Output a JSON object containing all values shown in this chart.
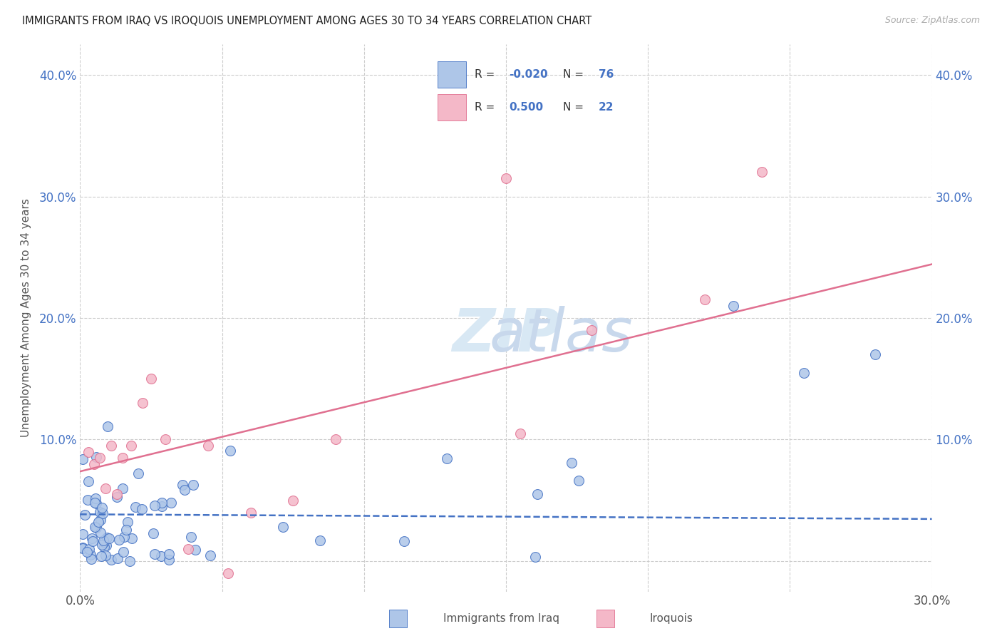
{
  "title": "IMMIGRANTS FROM IRAQ VS IROQUOIS UNEMPLOYMENT AMONG AGES 30 TO 34 YEARS CORRELATION CHART",
  "source": "Source: ZipAtlas.com",
  "ylabel": "Unemployment Among Ages 30 to 34 years",
  "xlim": [
    0.0,
    0.3
  ],
  "ylim": [
    -0.025,
    0.425
  ],
  "xtick_vals": [
    0.0,
    0.05,
    0.1,
    0.15,
    0.2,
    0.25,
    0.3
  ],
  "xtick_labels": [
    "0.0%",
    "",
    "",
    "",
    "",
    "",
    "30.0%"
  ],
  "ytick_vals": [
    0.0,
    0.1,
    0.2,
    0.3,
    0.4
  ],
  "ytick_labels": [
    "",
    "10.0%",
    "20.0%",
    "30.0%",
    "40.0%"
  ],
  "legend_iraq_R": "-0.020",
  "legend_iraq_N": "76",
  "legend_iroquois_R": "0.500",
  "legend_iroquois_N": "22",
  "iraq_fill": "#aec6e8",
  "iraq_edge": "#4472c4",
  "iroquois_fill": "#f4b8c8",
  "iroquois_edge": "#e07090",
  "iraq_trend_color": "#4472c4",
  "iroquois_trend_color": "#e07090",
  "background_color": "#ffffff",
  "grid_color": "#cccccc",
  "axis_color": "#4472c4",
  "text_color": "#555555",
  "watermark_zip_color": "#d8e8f4",
  "watermark_atlas_color": "#c8d8ec"
}
